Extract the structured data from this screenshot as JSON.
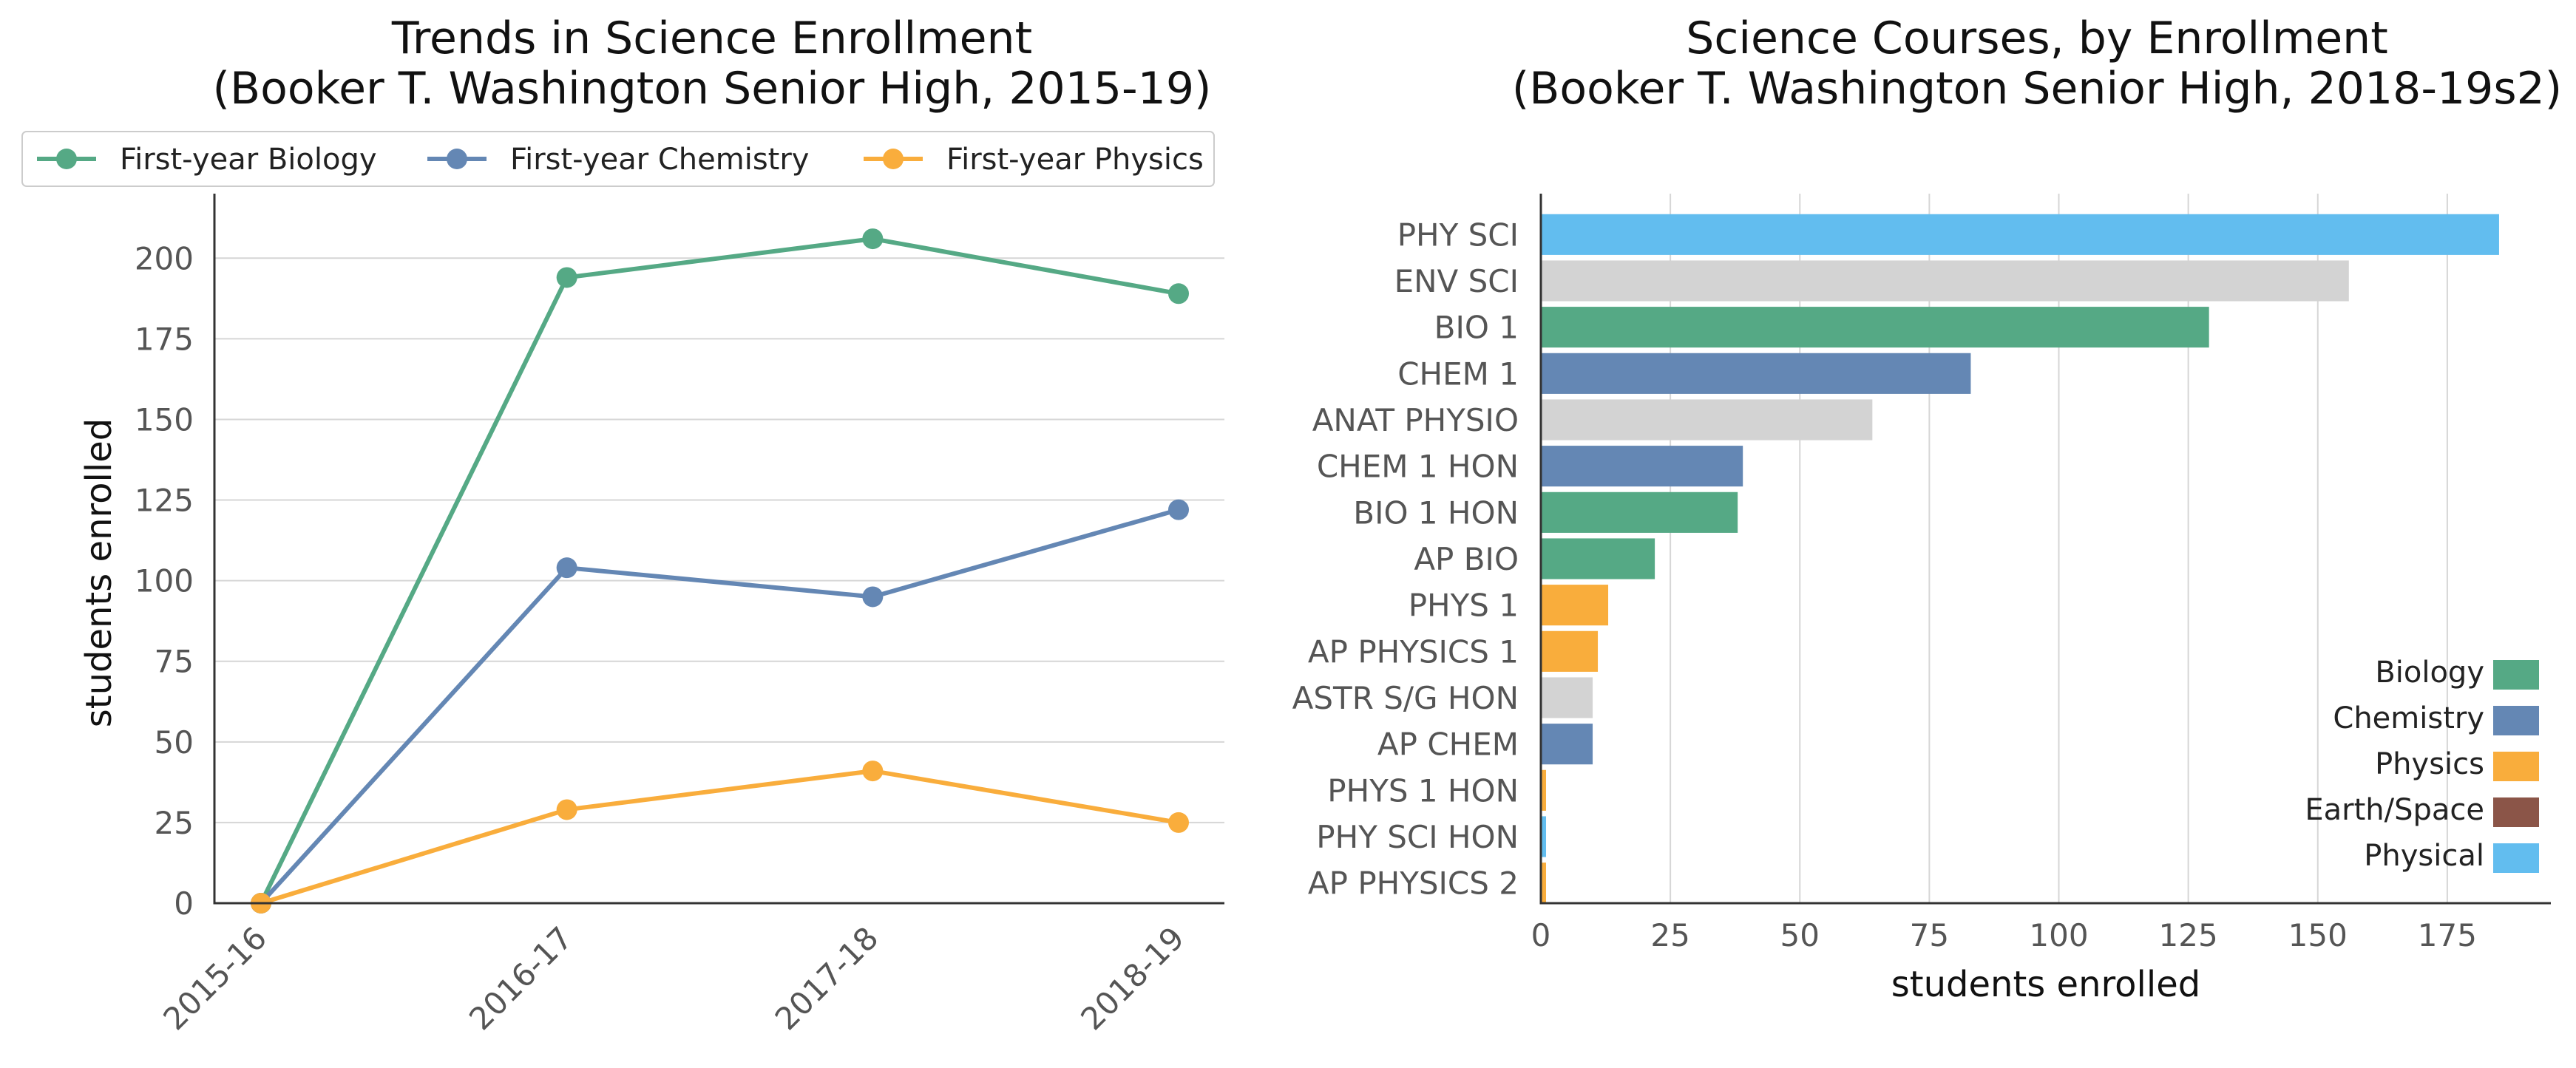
{
  "chart_data": [
    {
      "type": "line",
      "title": [
        "Trends in Science Enrollment",
        "(Booker T. Washington Senior High, 2015-19)"
      ],
      "xlabel": "",
      "ylabel": "students enrolled",
      "categories": [
        "2015-16",
        "2016-17",
        "2017-18",
        "2018-19"
      ],
      "ylim": [
        0,
        220
      ],
      "yticks": [
        0,
        25,
        50,
        75,
        100,
        125,
        150,
        175,
        200
      ],
      "grid": "horizontal",
      "legend_placement": "top",
      "series": [
        {
          "name": "First-year Biology",
          "color": "#55a985",
          "values": [
            0,
            194,
            206,
            189
          ]
        },
        {
          "name": "First-year Chemistry",
          "color": "#6487b4",
          "values": [
            0,
            104,
            95,
            122
          ]
        },
        {
          "name": "First-year Physics",
          "color": "#f9ad3c",
          "values": [
            0,
            29,
            41,
            25
          ]
        }
      ]
    },
    {
      "type": "bar",
      "orientation": "horizontal",
      "title": [
        "Science Courses, by Enrollment",
        "(Booker T. Washington Senior High, 2018-19s2)"
      ],
      "xlabel": "students enrolled",
      "ylabel": "",
      "xlim": [
        0,
        195
      ],
      "xticks": [
        0,
        25,
        50,
        75,
        100,
        125,
        150,
        175
      ],
      "grid": "vertical",
      "legend_placement": "lower-right",
      "categories": [
        "PHY SCI",
        "ENV SCI",
        "BIO 1",
        "CHEM 1",
        "ANAT PHYSIO",
        "CHEM 1 HON",
        "BIO 1 HON",
        "AP BIO",
        "PHYS 1",
        "AP PHYSICS 1",
        "ASTR S/G HON",
        "AP CHEM",
        "PHYS 1 HON",
        "PHY SCI HON",
        "AP PHYSICS 2"
      ],
      "values": [
        185,
        156,
        129,
        83,
        64,
        39,
        38,
        22,
        13,
        11,
        10,
        10,
        1,
        1,
        1
      ],
      "bar_colors": [
        "#62bdef",
        "#d3d3d3",
        "#55a985",
        "#6487b4",
        "#d3d3d3",
        "#6487b4",
        "#55a985",
        "#55a985",
        "#f9ad3c",
        "#f9ad3c",
        "#d3d3d3",
        "#6487b4",
        "#f9ad3c",
        "#62bdef",
        "#f9ad3c"
      ],
      "legend": [
        {
          "name": "Biology",
          "color": "#55a985"
        },
        {
          "name": "Chemistry",
          "color": "#6487b4"
        },
        {
          "name": "Physics",
          "color": "#f9ad3c"
        },
        {
          "name": "Earth/Space",
          "color": "#8b5548"
        },
        {
          "name": "Physical",
          "color": "#62bdef"
        }
      ]
    }
  ]
}
